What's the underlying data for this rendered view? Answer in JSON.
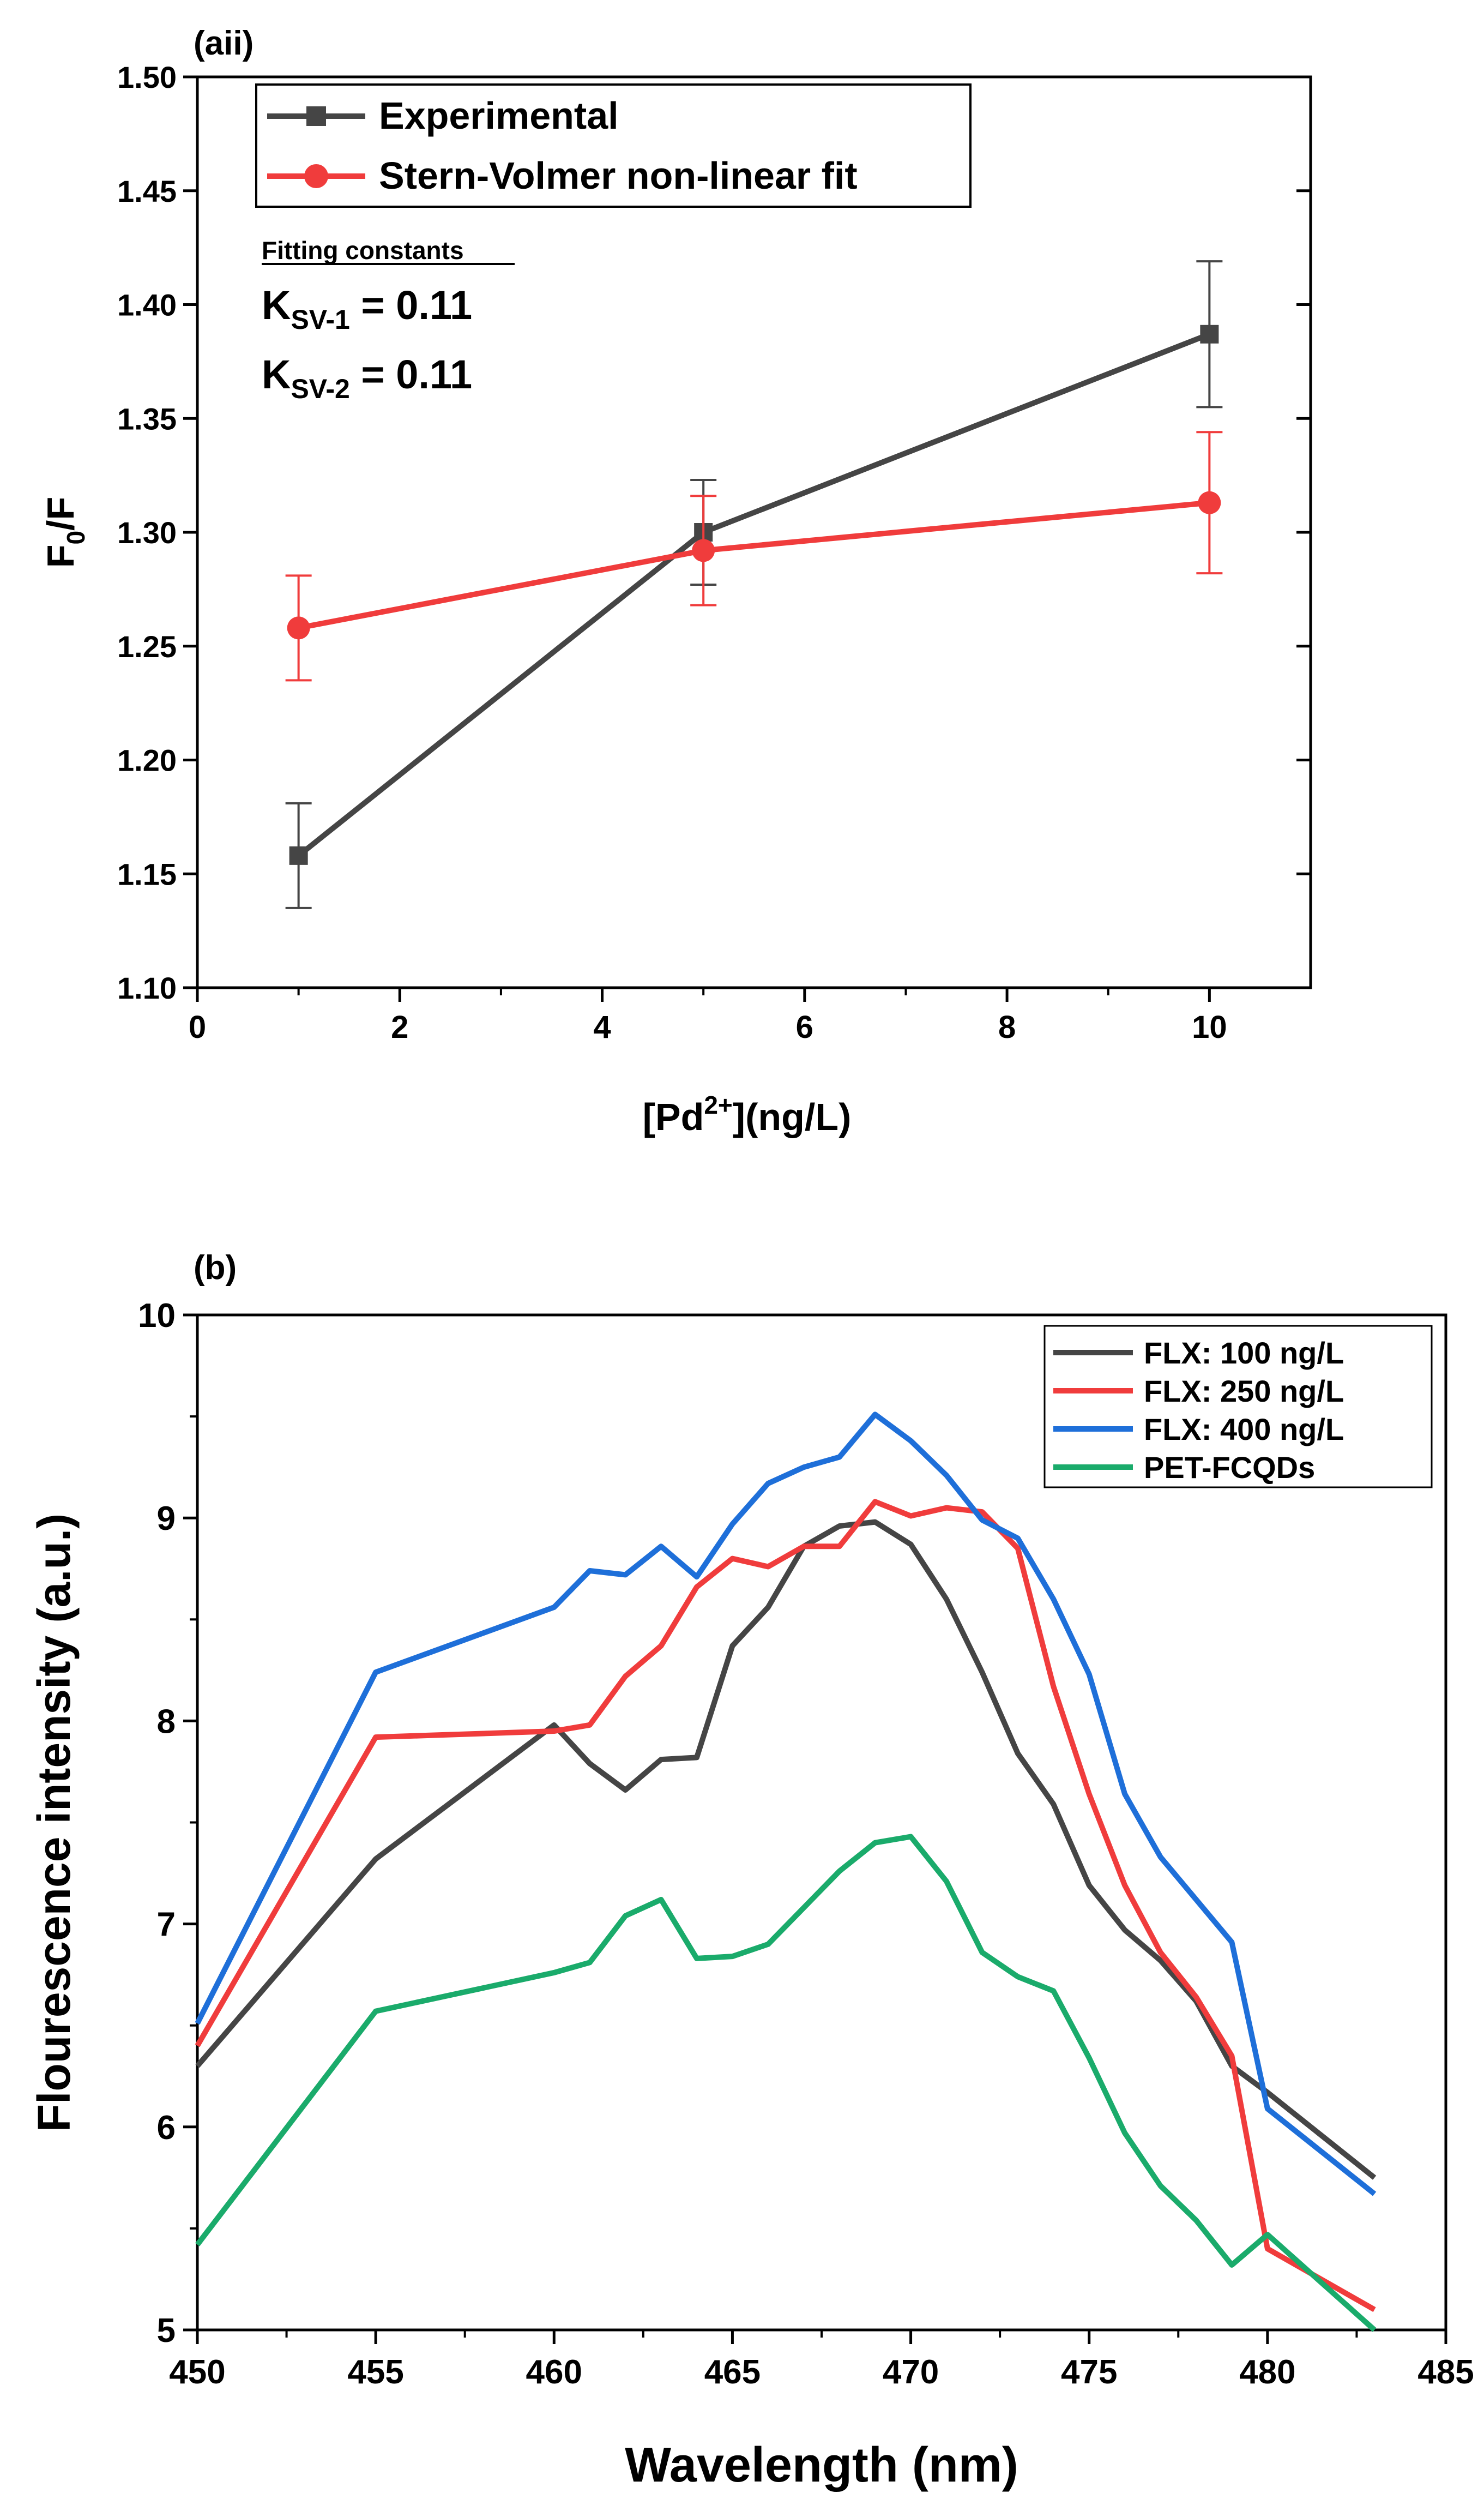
{
  "chart_data": [
    {
      "panel_label": "(aii)",
      "type": "line",
      "xlabel_parts": [
        "[Pd",
        "2+",
        "](ng/L)"
      ],
      "ylabel_parts": [
        "F",
        "0",
        "/F"
      ],
      "xlim": [
        0,
        11
      ],
      "ylim": [
        1.1,
        1.5
      ],
      "x_ticks": [
        0,
        2,
        4,
        6,
        8,
        10
      ],
      "y_ticks": [
        1.1,
        1.15,
        1.2,
        1.25,
        1.3,
        1.35,
        1.4,
        1.45,
        1.5
      ],
      "x_tick_labels": [
        "0",
        "2",
        "4",
        "6",
        "8",
        "10"
      ],
      "y_tick_labels": [
        "1.10",
        "1.15",
        "1.20",
        "1.25",
        "1.30",
        "1.35",
        "1.40",
        "1.45",
        "1.50"
      ],
      "legend_position": "top-left",
      "series": [
        {
          "name": "Experimental",
          "color": "#454545",
          "marker": "square",
          "x": [
            1,
            5,
            10
          ],
          "y": [
            1.158,
            1.3,
            1.387
          ],
          "yerr": [
            0.023,
            0.023,
            0.032
          ]
        },
        {
          "name": "Stern-Volmer non-linear fit",
          "color": "#f03c3c",
          "marker": "circle",
          "x": [
            1,
            5,
            10
          ],
          "y": [
            1.258,
            1.292,
            1.313
          ],
          "yerr": [
            0.023,
            0.024,
            0.031
          ]
        }
      ],
      "annotation": {
        "heading": "Fitting constants",
        "lines": [
          {
            "symbol": "K",
            "subscript": "SV-1",
            "value": " = 0.11"
          },
          {
            "symbol": "K",
            "subscript": "SV-2",
            "value": " = 0.11"
          }
        ]
      }
    },
    {
      "panel_label": "(b)",
      "type": "line",
      "xlabel": "Wavelength (nm)",
      "ylabel": "Flourescence intensity (a.u.)",
      "xlim": [
        450,
        485
      ],
      "ylim": [
        5,
        10
      ],
      "x_ticks": [
        450,
        455,
        460,
        465,
        470,
        475,
        480,
        485
      ],
      "y_ticks": [
        5,
        6,
        7,
        8,
        9,
        10
      ],
      "x_tick_labels": [
        "450",
        "455",
        "460",
        "465",
        "470",
        "475",
        "480",
        "485"
      ],
      "y_tick_labels": [
        "5",
        "6",
        "7",
        "8",
        "9",
        "10"
      ],
      "legend_position": "top-right",
      "series": [
        {
          "name": "FLX: 100 ng/L",
          "color": "#454545",
          "x": [
            450,
            455,
            460,
            461,
            462,
            463,
            464,
            465,
            466,
            467,
            468,
            469,
            470,
            471,
            472,
            473,
            474,
            475,
            476,
            477,
            478,
            479,
            480,
            483
          ],
          "y": [
            6.3,
            7.32,
            7.98,
            7.79,
            7.66,
            7.81,
            7.82,
            8.37,
            8.56,
            8.86,
            8.96,
            8.98,
            8.87,
            8.6,
            8.24,
            7.84,
            7.59,
            7.19,
            6.97,
            6.82,
            6.62,
            6.3,
            6.17,
            5.75
          ]
        },
        {
          "name": "FLX: 250 ng/L",
          "color": "#f03c3c",
          "x": [
            450,
            455,
            460,
            461,
            462,
            463,
            464,
            465,
            466,
            467,
            468,
            469,
            470,
            471,
            472,
            473,
            474,
            475,
            476,
            477,
            478,
            479,
            480,
            483
          ],
          "y": [
            6.4,
            7.92,
            7.95,
            7.98,
            8.22,
            8.37,
            8.66,
            8.8,
            8.76,
            8.86,
            8.86,
            9.08,
            9.01,
            9.05,
            9.03,
            8.85,
            8.17,
            7.64,
            7.19,
            6.86,
            6.64,
            6.35,
            5.4,
            5.1
          ]
        },
        {
          "name": "FLX: 400 ng/L",
          "color": "#1e6fd9",
          "x": [
            450,
            455,
            460,
            461,
            462,
            463,
            464,
            465,
            466,
            467,
            468,
            469,
            470,
            471,
            472,
            473,
            474,
            475,
            476,
            477,
            478,
            479,
            480,
            483
          ],
          "y": [
            6.51,
            8.24,
            8.56,
            8.74,
            8.72,
            8.86,
            8.71,
            8.97,
            9.17,
            9.25,
            9.3,
            9.51,
            9.38,
            9.21,
            8.99,
            8.9,
            8.6,
            8.23,
            7.64,
            7.33,
            7.12,
            6.91,
            6.09,
            5.67
          ]
        },
        {
          "name": "PET-FCQDs",
          "color": "#1aab6b",
          "x": [
            450,
            455,
            460,
            461,
            462,
            463,
            464,
            465,
            466,
            467,
            468,
            469,
            470,
            471,
            472,
            473,
            474,
            475,
            476,
            477,
            478,
            479,
            480,
            483
          ],
          "y": [
            5.42,
            6.57,
            6.76,
            6.81,
            7.04,
            7.12,
            6.83,
            6.84,
            6.9,
            7.08,
            7.26,
            7.4,
            7.43,
            7.21,
            6.86,
            6.74,
            6.67,
            6.34,
            5.97,
            5.71,
            5.54,
            5.32,
            5.47,
            5.0
          ]
        }
      ]
    }
  ]
}
